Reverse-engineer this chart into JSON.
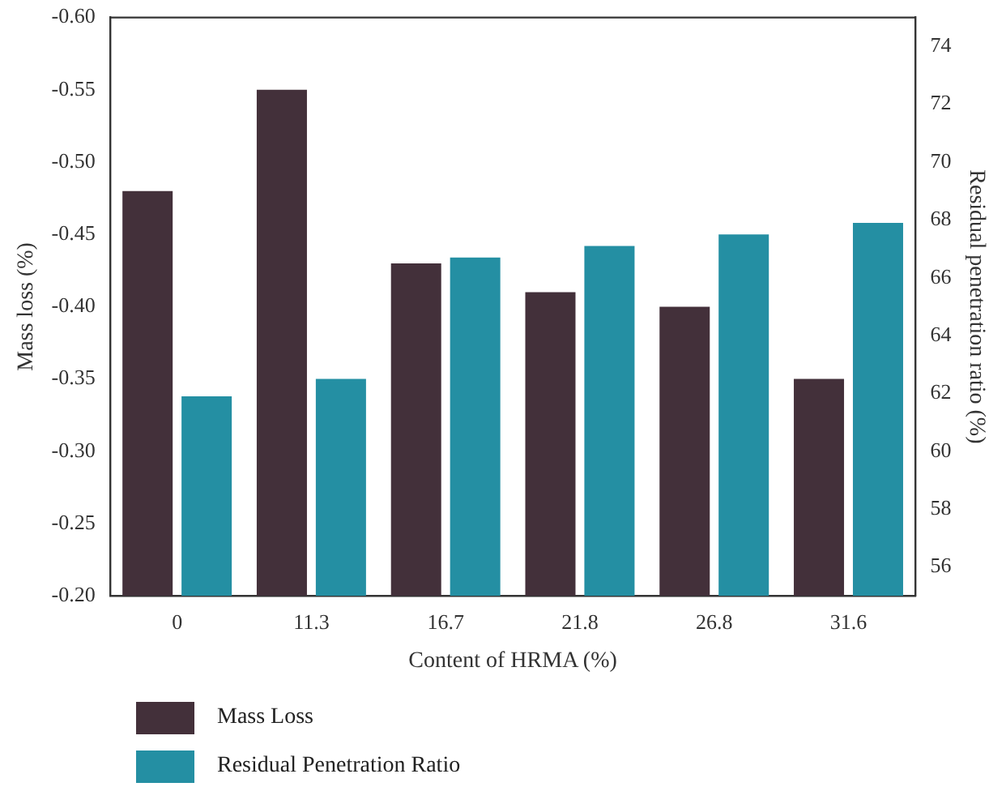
{
  "chart_data": {
    "type": "bar",
    "xlabel": "Content of HRMA (%)",
    "ylabel": "Mass loss (%)",
    "y2label": "Residual penetration ratio (%)",
    "categories": [
      "0",
      "11.3",
      "16.7",
      "21.8",
      "26.8",
      "31.6"
    ],
    "series": [
      {
        "name": "Mass Loss",
        "color": "#43303a",
        "values": [
          -0.48,
          -0.55,
          -0.43,
          -0.41,
          -0.4,
          -0.35
        ]
      },
      {
        "name": "Residual Penetration Ratio",
        "color": "#248fa3",
        "axis": "y2",
        "values": [
          61.9,
          62.5,
          66.7,
          67.1,
          67.5,
          67.9
        ]
      }
    ],
    "ylim": [
      -0.2,
      -0.6
    ],
    "yticks": [
      {
        "value": -0.2,
        "label": "-0.20"
      },
      {
        "value": -0.25,
        "label": "-0.25"
      },
      {
        "value": -0.3,
        "label": "-0.30"
      },
      {
        "value": -0.35,
        "label": "-0.35"
      },
      {
        "value": -0.4,
        "label": "-0.40"
      },
      {
        "value": -0.45,
        "label": "-0.45"
      },
      {
        "value": -0.5,
        "label": "-0.50"
      },
      {
        "value": -0.55,
        "label": "-0.55"
      },
      {
        "value": -0.6,
        "label": "-0.60"
      }
    ],
    "y2lim": [
      55,
      75
    ],
    "y2ticks": [
      56,
      58,
      60,
      62,
      64,
      66,
      68,
      70,
      72,
      74
    ],
    "grid": false,
    "legend": "bottom"
  }
}
